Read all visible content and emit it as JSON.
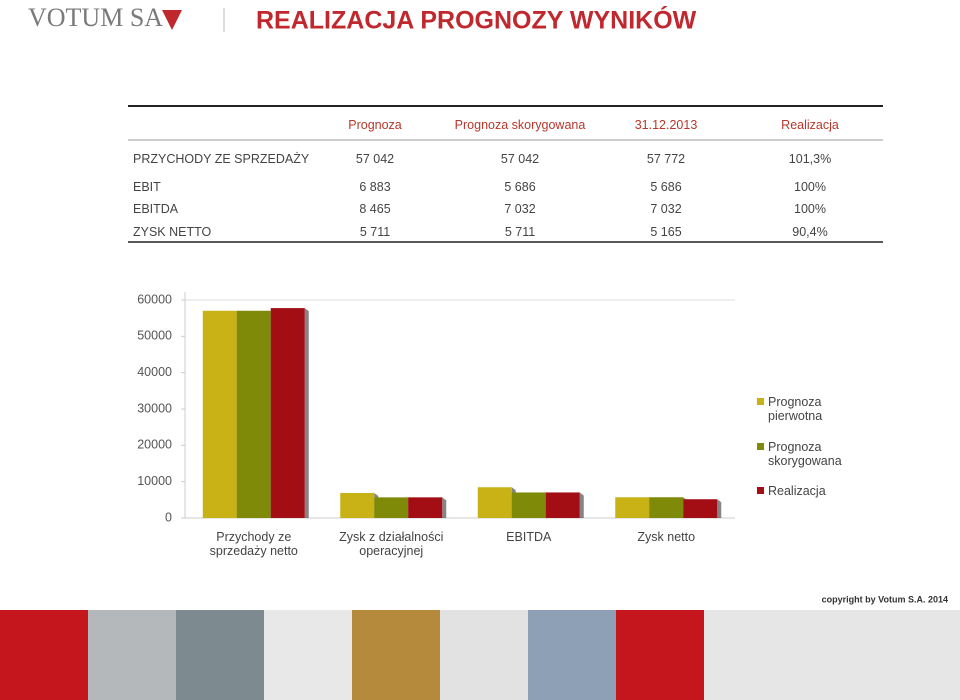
{
  "header": {
    "logo": "VOTUM SA",
    "title": "REALIZACJA PROGNOZY WYNIKÓW"
  },
  "table": {
    "columns": [
      "Prognoza",
      "Prognoza skorygowana",
      "31.12.2013",
      "Realizacja"
    ],
    "rows": [
      [
        "PRZYCHODY ZE SPRZEDAŻY",
        "57 042",
        "57 042",
        "57 772",
        "101,3%"
      ],
      [
        "EBIT",
        "6 883",
        "5 686",
        "5 686",
        "100%"
      ],
      [
        "EBITDA",
        "8 465",
        "7 032",
        "7 032",
        "100%"
      ],
      [
        "ZYSK NETTO",
        "5 711",
        "5 711",
        "5 165",
        "90,4%"
      ]
    ]
  },
  "chart_data": {
    "type": "bar",
    "categories": [
      "Przychody ze sprzedaży netto",
      "Zysk z działalności operacyjnej",
      "EBITDA",
      "Zysk netto"
    ],
    "series": [
      {
        "name": "Prognoza pierwotna",
        "color": "#c9b216",
        "values": [
          57042,
          6883,
          8465,
          5711
        ]
      },
      {
        "name": "Prognoza skorygowana",
        "color": "#7f8a08",
        "values": [
          57042,
          5686,
          7032,
          5711
        ]
      },
      {
        "name": "Realizacja",
        "color": "#a30d14",
        "values": [
          57772,
          5686,
          7032,
          5165
        ]
      }
    ],
    "ylim": [
      0,
      60000
    ],
    "yticks": [
      0,
      10000,
      20000,
      30000,
      40000,
      50000,
      60000
    ],
    "grid": false,
    "legend": "right"
  },
  "footer": {
    "copyright": "copyright by Votum S.A. 2014"
  }
}
